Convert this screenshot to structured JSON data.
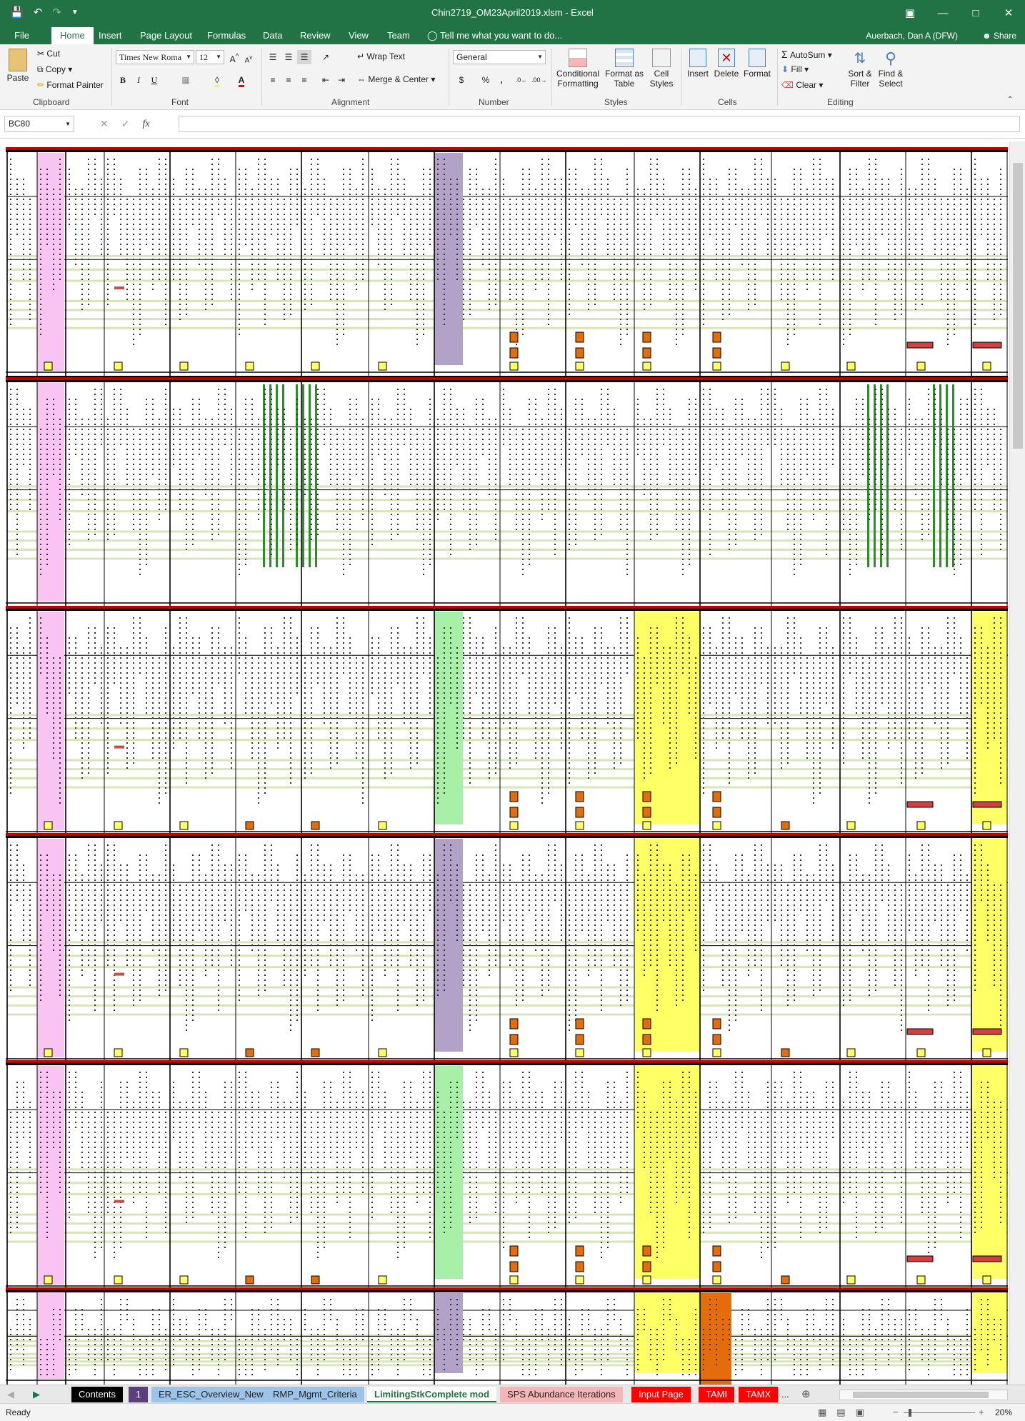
{
  "window": {
    "title": "Chin2719_OM23April2019.xlsm - Excel"
  },
  "ribbon_tabs": [
    "File",
    "Home",
    "Insert",
    "Page Layout",
    "Formulas",
    "Data",
    "Review",
    "View",
    "Team"
  ],
  "tell_me": "Tell me what you want to do...",
  "user": "Auerbach, Dan A (DFW)",
  "share": "Share",
  "clipboard": {
    "paste": "Paste",
    "cut": "Cut",
    "copy": "Copy",
    "format_painter": "Format Painter",
    "label": "Clipboard"
  },
  "font": {
    "name": "Times New Roma",
    "size": "12",
    "label": "Font",
    "bold": "B",
    "italic": "I",
    "underline": "U",
    "grow": "A",
    "shrink": "A"
  },
  "alignment": {
    "wrap": "Wrap Text",
    "merge": "Merge & Center",
    "label": "Alignment"
  },
  "number": {
    "format": "General",
    "currency": "$",
    "percent": "%",
    "comma": ",",
    "label": "Number"
  },
  "styles": {
    "conditional": "Conditional Formatting",
    "format_table": "Format as Table",
    "cell_styles": "Cell Styles",
    "label": "Styles"
  },
  "cells": {
    "insert": "Insert",
    "delete": "Delete",
    "format": "Format",
    "label": "Cells"
  },
  "editing": {
    "autosum": "AutoSum",
    "fill": "Fill",
    "clear": "Clear",
    "sort": "Sort & Filter",
    "find": "Find & Select",
    "label": "Editing"
  },
  "formula_bar": {
    "name_box": "BC80",
    "fx": "fx",
    "value": ""
  },
  "sheet_tabs": [
    {
      "label": "Contents",
      "bg": "#000000",
      "fg": "#ffffff"
    },
    {
      "label": "1",
      "bg": "#5b3f7a",
      "fg": "#ffffff"
    },
    {
      "label": "ER_ESC_Overview_New",
      "bg": "#9dc3e6",
      "fg": "#222222"
    },
    {
      "label": "RMP_Mgmt_Criteria",
      "bg": "#9dc3e6",
      "fg": "#222222"
    },
    {
      "label": "LimitingStkComplete mod",
      "bg": "#ffffff",
      "fg": "#217346"
    },
    {
      "label": "SPS Abundance Iterations",
      "bg": "#f4b6b6",
      "fg": "#222222"
    },
    {
      "label": "Input Page",
      "bg": "#ff0000",
      "fg": "#ffffff"
    },
    {
      "label": "TAMI",
      "bg": "#ff0000",
      "fg": "#ffffff"
    },
    {
      "label": "TAMX",
      "bg": "#ff0000",
      "fg": "#ffffff"
    }
  ],
  "more_tabs": "...",
  "status": {
    "ready": "Ready",
    "zoom": "20%"
  },
  "colors": {
    "excel_green": "#217346",
    "pink": "#f9c4f2",
    "purple": "#b3a2c7",
    "green_highlight": "#a8f0a8",
    "yellow": "#ffff66",
    "orange": "#e46c0a",
    "olive_band": "#d8e4bc"
  }
}
